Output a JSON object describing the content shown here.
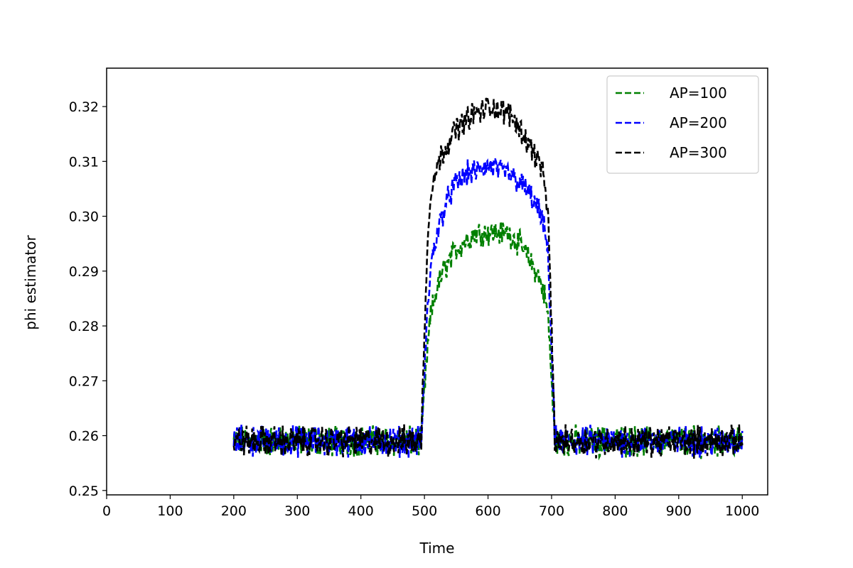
{
  "chart_data": {
    "type": "line",
    "title": "",
    "xlabel": "Time",
    "ylabel": "phi estimator",
    "xlim": [
      0,
      1040
    ],
    "ylim": [
      0.2492,
      0.327
    ],
    "xticks": [
      0,
      100,
      200,
      300,
      400,
      500,
      600,
      700,
      800,
      900,
      1000
    ],
    "yticks": [
      0.25,
      0.26,
      0.27,
      0.28,
      0.29,
      0.3,
      0.31,
      0.32
    ],
    "ytick_labels": [
      "0.25",
      "0.26",
      "0.27",
      "0.28",
      "0.29",
      "0.30",
      "0.31",
      "0.32"
    ],
    "grid": false,
    "legend_position": "top-right",
    "x_range": [
      200,
      1000
    ],
    "baseline": 0.259,
    "series": [
      {
        "name": "AP=100",
        "color": "#008000",
        "style": "dashed",
        "x": [
          200,
          250,
          300,
          350,
          400,
          450,
          495,
          500,
          505,
          510,
          520,
          530,
          540,
          550,
          560,
          570,
          580,
          590,
          600,
          610,
          620,
          630,
          640,
          650,
          660,
          670,
          680,
          690,
          695,
          700,
          705,
          750,
          800,
          850,
          900,
          950,
          1000
        ],
        "y": [
          0.259,
          0.259,
          0.259,
          0.259,
          0.259,
          0.259,
          0.259,
          0.268,
          0.276,
          0.282,
          0.287,
          0.29,
          0.292,
          0.294,
          0.295,
          0.296,
          0.297,
          0.297,
          0.297,
          0.297,
          0.297,
          0.297,
          0.296,
          0.295,
          0.293,
          0.291,
          0.289,
          0.285,
          0.281,
          0.27,
          0.259,
          0.259,
          0.259,
          0.259,
          0.259,
          0.259,
          0.259
        ]
      },
      {
        "name": "AP=200",
        "color": "#0000ff",
        "style": "dashed",
        "x": [
          200,
          250,
          300,
          350,
          400,
          450,
          495,
          500,
          505,
          510,
          520,
          530,
          540,
          550,
          560,
          570,
          580,
          590,
          600,
          610,
          620,
          630,
          640,
          650,
          660,
          670,
          680,
          690,
          695,
          700,
          705,
          750,
          800,
          850,
          900,
          950,
          1000
        ],
        "y": [
          0.259,
          0.259,
          0.259,
          0.259,
          0.259,
          0.259,
          0.259,
          0.272,
          0.283,
          0.291,
          0.297,
          0.301,
          0.304,
          0.306,
          0.307,
          0.308,
          0.308,
          0.309,
          0.309,
          0.309,
          0.308,
          0.308,
          0.307,
          0.306,
          0.305,
          0.303,
          0.301,
          0.297,
          0.292,
          0.276,
          0.259,
          0.259,
          0.259,
          0.259,
          0.259,
          0.259,
          0.259
        ]
      },
      {
        "name": "AP=300",
        "color": "#000000",
        "style": "dashed",
        "x": [
          200,
          250,
          300,
          350,
          400,
          450,
          495,
          500,
          505,
          510,
          520,
          530,
          540,
          550,
          560,
          570,
          580,
          590,
          600,
          610,
          620,
          630,
          640,
          650,
          660,
          670,
          680,
          690,
          695,
          700,
          705,
          750,
          800,
          850,
          900,
          950,
          1000
        ],
        "y": [
          0.259,
          0.259,
          0.259,
          0.259,
          0.259,
          0.259,
          0.259,
          0.28,
          0.295,
          0.305,
          0.309,
          0.312,
          0.314,
          0.316,
          0.317,
          0.318,
          0.319,
          0.319,
          0.32,
          0.32,
          0.319,
          0.319,
          0.318,
          0.316,
          0.314,
          0.312,
          0.31,
          0.306,
          0.298,
          0.28,
          0.259,
          0.259,
          0.259,
          0.259,
          0.259,
          0.259,
          0.259
        ]
      }
    ]
  }
}
